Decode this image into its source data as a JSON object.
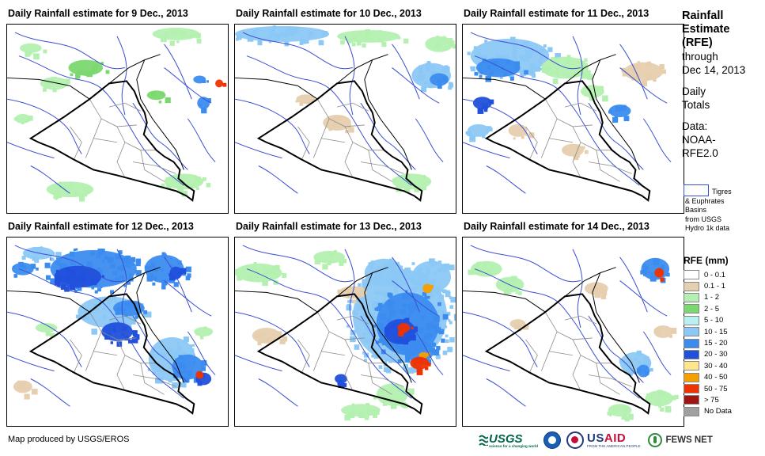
{
  "panels": [
    {
      "title": "Daily Rainfall estimate for 9 Dec., 2013"
    },
    {
      "title": "Daily Rainfall estimate for 10 Dec., 2013"
    },
    {
      "title": "Daily Rainfall estimate for 11 Dec., 2013"
    },
    {
      "title": "Daily Rainfall estimate for 12 Dec., 2013"
    },
    {
      "title": "Daily Rainfall estimate for 13 Dec., 2013"
    },
    {
      "title": "Daily Rainfall estimate for 14 Dec., 2013"
    }
  ],
  "side": {
    "heading": [
      "Rainfall",
      "Estimate",
      "(RFE)"
    ],
    "through": "through",
    "date": "Dec 14, 2013",
    "totals": [
      "Daily",
      "Totals"
    ],
    "data_label": "Data:",
    "data_source": [
      "NOAA-",
      "RFE2.0"
    ]
  },
  "basins": {
    "lines": [
      "Tigres",
      "& Euphrates",
      "Basins",
      "from USGS",
      "Hydro 1k data"
    ],
    "color": "#3a4fd1"
  },
  "rfe_legend": {
    "title": "RFE (mm)",
    "classes": [
      {
        "label": "0 - 0.1",
        "color": "#ffffff"
      },
      {
        "label": "0.1 - 1",
        "color": "#e6cfae"
      },
      {
        "label": "1 - 2",
        "color": "#b4f0b0"
      },
      {
        "label": "2 - 5",
        "color": "#7ad86e"
      },
      {
        "label": "5 - 10",
        "color": "#b9f0f0"
      },
      {
        "label": "10 - 15",
        "color": "#8cc8f5"
      },
      {
        "label": "15 - 20",
        "color": "#3c8cf0"
      },
      {
        "label": "20 - 30",
        "color": "#2050dc"
      },
      {
        "label": "30 - 40",
        "color": "#ffe68c"
      },
      {
        "label": "40 - 50",
        "color": "#f5a000"
      },
      {
        "label": "50 - 75",
        "color": "#f03200"
      },
      {
        "label": "> 75",
        "color": "#a01414"
      },
      {
        "label": "No Data",
        "color": "#a0a0a0"
      }
    ]
  },
  "credit": "Map produced by USGS/EROS",
  "logos": {
    "usgs": "USGS",
    "usgs_tagline": "science for a changing world",
    "usaid_pre": "US",
    "usaid_post": "AID",
    "usaid_tagline": "FROM THE AMERICAN PEOPLE",
    "fews": "FEWS NET"
  },
  "colors": {
    "country_border": "#000000",
    "province_border": "#8c8c8c",
    "basin_line": "#3a4fd1"
  }
}
